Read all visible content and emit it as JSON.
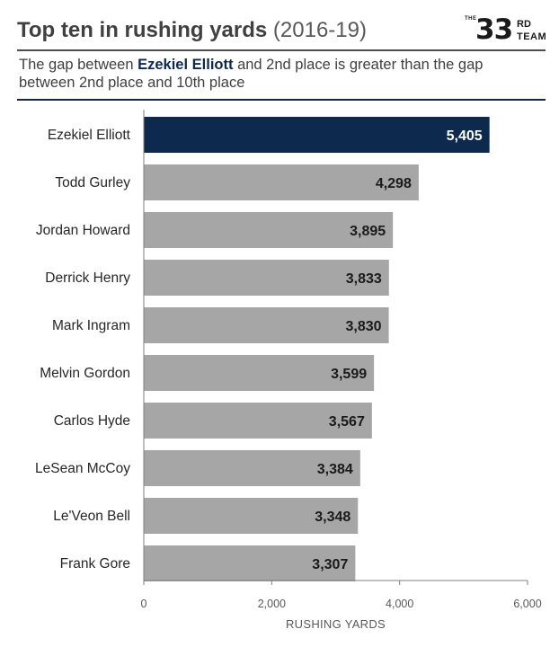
{
  "header": {
    "title_main": "Top ten in rushing yards",
    "title_years": "(2016-19)",
    "subtitle_pre": "The gap between ",
    "subtitle_highlight": "Ezekiel Elliott",
    "subtitle_post": " and 2nd place is greater than the gap between 2nd place and 10th place"
  },
  "logo": {
    "the": "THE",
    "number": "33",
    "rd": "RD",
    "team": "TEAM"
  },
  "colors": {
    "highlight": "#0d2a4e",
    "bar": "#a6a6a6",
    "axis": "#808080"
  },
  "chart_data": {
    "type": "bar",
    "orientation": "horizontal",
    "categories": [
      "Ezekiel Elliott",
      "Todd Gurley",
      "Jordan Howard",
      "Derrick Henry",
      "Mark Ingram",
      "Melvin Gordon",
      "Carlos Hyde",
      "LeSean McCoy",
      "Le'Veon Bell",
      "Frank Gore"
    ],
    "values": [
      5405,
      4298,
      3895,
      3833,
      3830,
      3599,
      3567,
      3384,
      3348,
      3307
    ],
    "value_labels": [
      "5,405",
      "4,298",
      "3,895",
      "3,833",
      "3,830",
      "3,599",
      "3,567",
      "3,384",
      "3,348",
      "3,307"
    ],
    "highlight_index": 0,
    "xlabel": "RUSHING YARDS",
    "xlim": [
      0,
      6000
    ],
    "xticks": [
      0,
      2000,
      4000,
      6000
    ],
    "xtick_labels": [
      "0",
      "2,000",
      "4,000",
      "6,000"
    ],
    "grid": false
  }
}
